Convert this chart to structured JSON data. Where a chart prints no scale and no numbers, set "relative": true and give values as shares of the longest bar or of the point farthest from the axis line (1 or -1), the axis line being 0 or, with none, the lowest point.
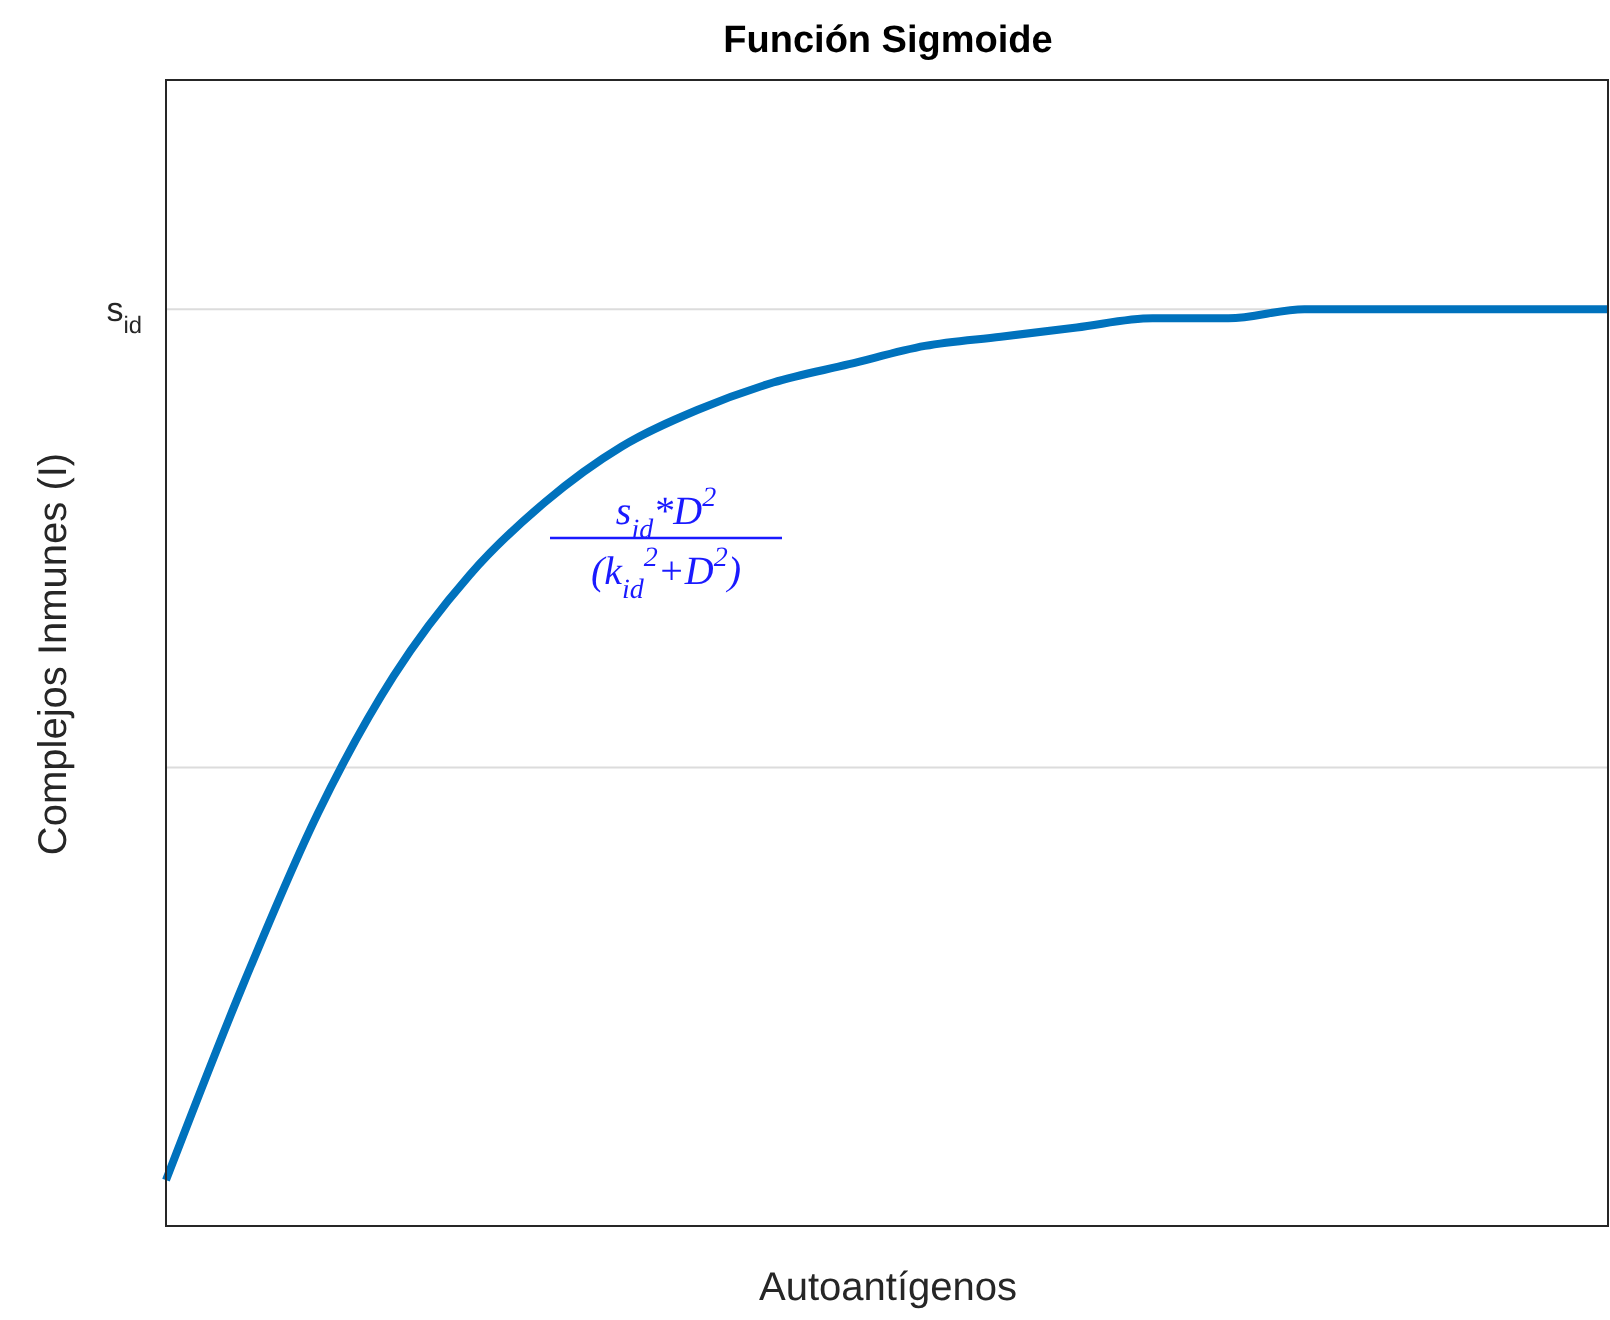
{
  "chart_data": {
    "type": "line",
    "title": "Función Sigmoide",
    "xlabel": "Autoantígenos",
    "ylabel": "Complejos Inmunes (I)",
    "relative": true,
    "categories": [
      null,
      null,
      null,
      null,
      null,
      null,
      null,
      null,
      null,
      null,
      null,
      null,
      null,
      null,
      null,
      null,
      null,
      null,
      null,
      null
    ],
    "series": [
      {
        "color": "#0072bd",
        "values": [
          0.05,
          0.26,
          0.45,
          0.6,
          0.71,
          0.79,
          0.85,
          0.89,
          0.92,
          0.94,
          0.96,
          0.97,
          0.98,
          0.99,
          0.99,
          1.0,
          1.0,
          1.0,
          1.0,
          1.0
        ]
      }
    ],
    "ref_lines": [
      {
        "axis": "y",
        "value": 1,
        "label": "s$_{id}$",
        "color": "#dcdcdc"
      },
      {
        "axis": "y",
        "value": 0.5,
        "label": null,
        "color": "#dcdcdc"
      }
    ],
    "annotations": [
      "s$_{id}$*D$^{2}$",
      "(k$_{id}$$^{2}$+D$^{2}$)"
    ],
    "legend": false,
    "marker": "none",
    "line_style": "solid"
  }
}
